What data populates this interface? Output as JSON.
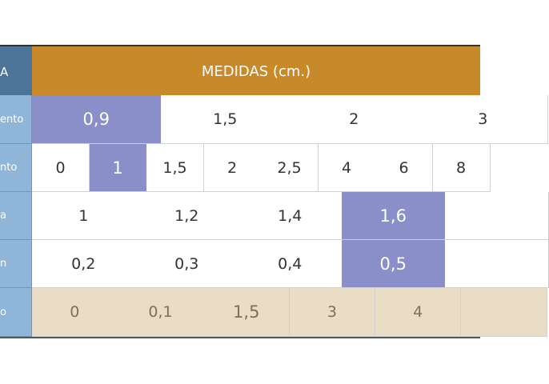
{
  "header": {
    "left": "A",
    "title": "MEDIDAS (cm.)"
  },
  "rows": [
    {
      "label": "ento",
      "cells": [
        "0,9",
        "1,5",
        "2",
        "3"
      ]
    },
    {
      "label": "nto",
      "cells": [
        "0",
        "1",
        "1,5",
        "2",
        "2,5",
        "4",
        "6",
        "8"
      ]
    },
    {
      "label": "a",
      "cells": [
        "1",
        "1,2",
        "1,4",
        "1,6"
      ]
    },
    {
      "label": "n",
      "cells": [
        "0,2",
        "0,3",
        "0,4",
        "0,5"
      ]
    },
    {
      "label": "o",
      "cells": [
        "0",
        "0,1",
        "1,5",
        "3",
        "4"
      ]
    }
  ]
}
